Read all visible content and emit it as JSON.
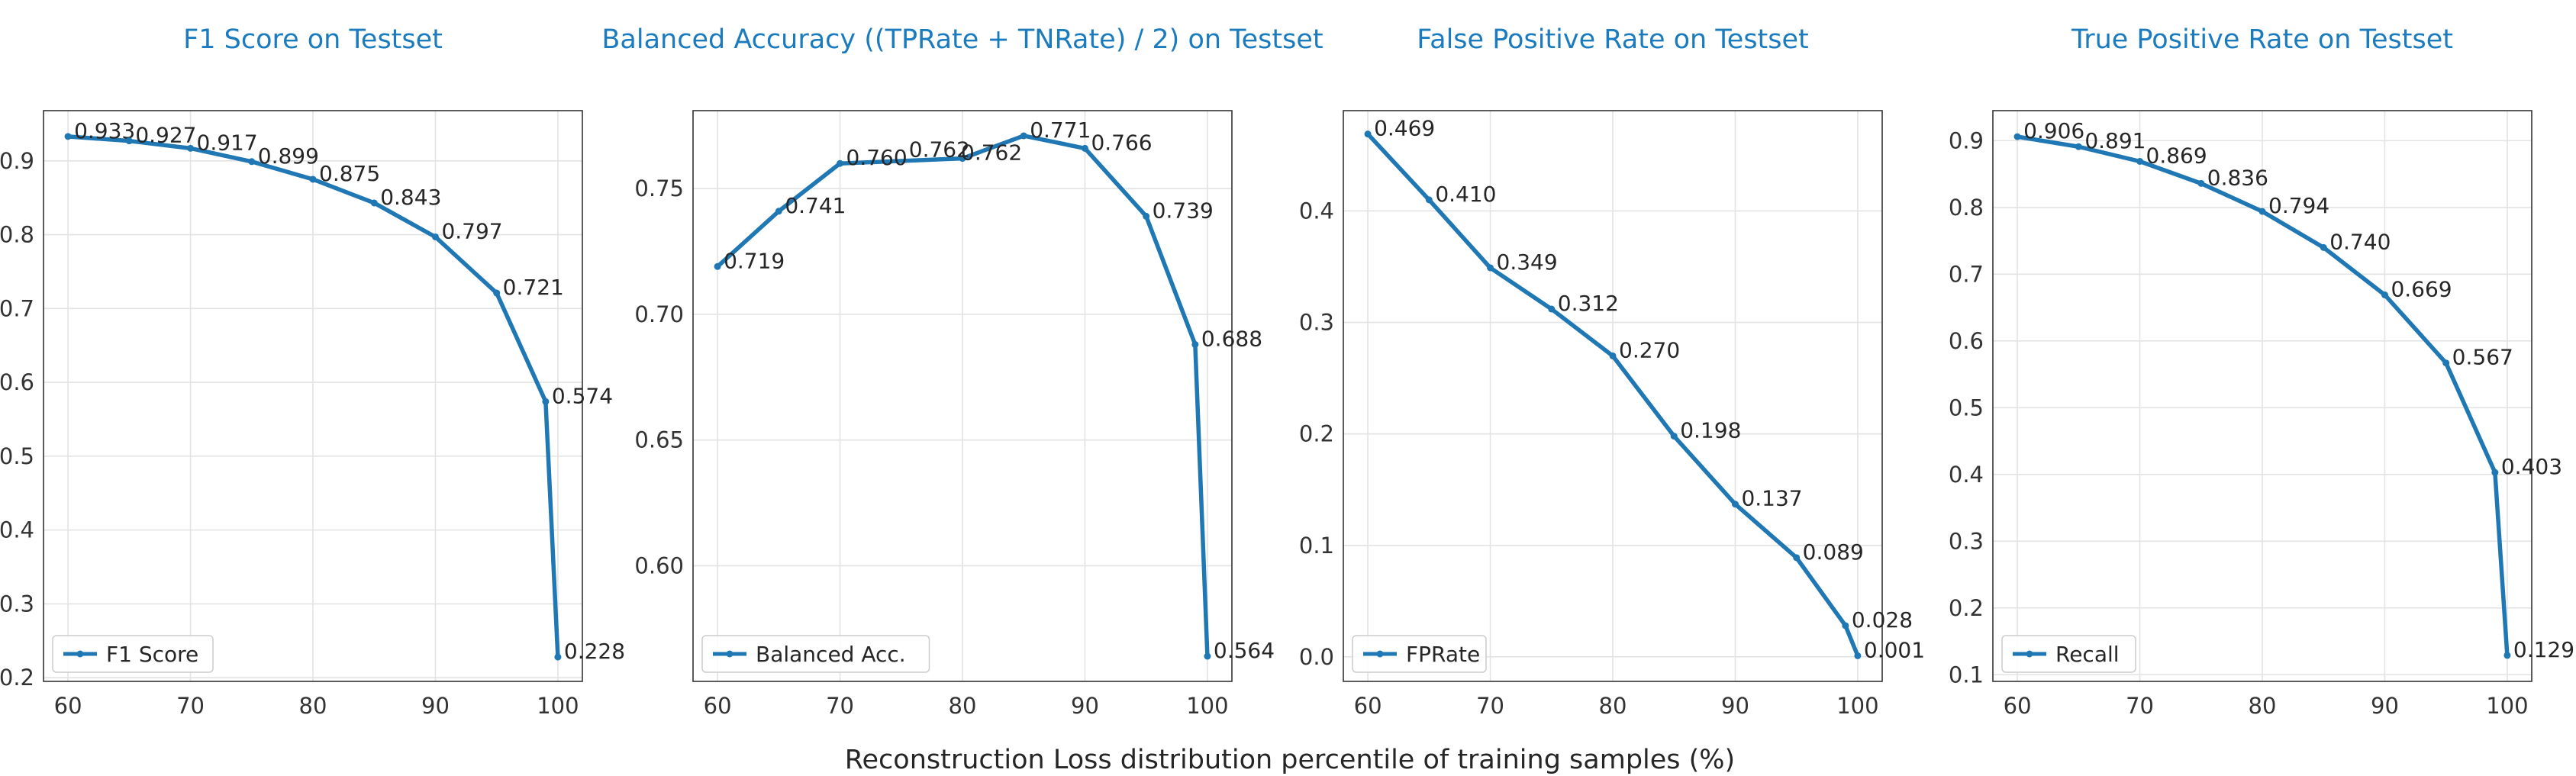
{
  "figure_xlabel": "Reconstruction Loss distribution percentile of training samples (%)",
  "series_color": "#1f77b4",
  "title_color": "#1a7bbf",
  "chart_data": [
    {
      "type": "line",
      "title": "F1 Score on Testset",
      "xlabel": "",
      "ylabel": "",
      "x": [
        60,
        65,
        70,
        75,
        80,
        85,
        90,
        95,
        99,
        100
      ],
      "series": [
        {
          "name": "F1 Score",
          "values": [
            0.933,
            0.927,
            0.917,
            0.899,
            0.875,
            0.843,
            0.797,
            0.721,
            0.574,
            0.228
          ]
        }
      ],
      "data_labels": [
        "0.933",
        "0.927",
        "0.917",
        "0.899",
        "0.875",
        "0.843",
        "0.797",
        "0.721",
        "0.574",
        "0.228"
      ],
      "xlim": [
        58,
        102
      ],
      "ylim": [
        0.195,
        0.968
      ],
      "xticks": [
        60,
        70,
        80,
        90,
        100
      ],
      "yticks": [
        0.2,
        0.3,
        0.4,
        0.5,
        0.6,
        0.7,
        0.8,
        0.9
      ],
      "ytick_labels": [
        "0.2",
        "0.3",
        "0.4",
        "0.5",
        "0.6",
        "0.7",
        "0.8",
        "0.9"
      ],
      "grid": true,
      "legend_position": "lower-left"
    },
    {
      "type": "line",
      "title": "Balanced Accuracy ((TPRate + TNRate) / 2) on Testset",
      "xlabel": "",
      "ylabel": "",
      "x": [
        60,
        65,
        70,
        80,
        85,
        90,
        95,
        99,
        100
      ],
      "series": [
        {
          "name": "Balanced Acc.",
          "values": [
            0.719,
            0.741,
            0.76,
            0.762,
            0.771,
            0.766,
            0.739,
            0.688,
            0.564
          ]
        }
      ],
      "data_labels": [
        "0.719",
        "0.741",
        "0.760",
        "0.762",
        "0.771",
        "0.766",
        "0.739",
        "0.688",
        "0.564"
      ],
      "extra_label": "0.762",
      "xlim": [
        58,
        102
      ],
      "ylim": [
        0.554,
        0.781
      ],
      "xticks": [
        60,
        70,
        80,
        90,
        100
      ],
      "yticks": [
        0.6,
        0.65,
        0.7,
        0.75
      ],
      "ytick_labels": [
        "0.60",
        "0.65",
        "0.70",
        "0.75"
      ],
      "grid": true,
      "legend_position": "lower-left"
    },
    {
      "type": "line",
      "title": "False Positive Rate on Testset",
      "xlabel": "",
      "ylabel": "",
      "x": [
        60,
        65,
        70,
        75,
        80,
        85,
        90,
        95,
        99,
        100
      ],
      "series": [
        {
          "name": "FPRate",
          "values": [
            0.469,
            0.41,
            0.349,
            0.312,
            0.27,
            0.198,
            0.137,
            0.089,
            0.028,
            0.001
          ]
        }
      ],
      "data_labels": [
        "0.469",
        "0.410",
        "0.349",
        "0.312",
        "0.270",
        "0.198",
        "0.137",
        "0.089",
        "0.028",
        "0.001"
      ],
      "xlim": [
        58,
        102
      ],
      "ylim": [
        -0.022,
        0.49
      ],
      "xticks": [
        60,
        70,
        80,
        90,
        100
      ],
      "yticks": [
        0.0,
        0.1,
        0.2,
        0.3,
        0.4
      ],
      "ytick_labels": [
        "0.0",
        "0.1",
        "0.2",
        "0.3",
        "0.4"
      ],
      "grid": true,
      "legend_position": "lower-left"
    },
    {
      "type": "line",
      "title": "True Positive Rate on Testset",
      "xlabel": "",
      "ylabel": "",
      "x": [
        60,
        65,
        70,
        75,
        80,
        85,
        90,
        95,
        99,
        100
      ],
      "series": [
        {
          "name": "Recall",
          "values": [
            0.906,
            0.891,
            0.869,
            0.836,
            0.794,
            0.74,
            0.669,
            0.567,
            0.403,
            0.129
          ]
        }
      ],
      "data_labels": [
        "0.906",
        "0.891",
        "0.869",
        "0.836",
        "0.794",
        "0.740",
        "0.669",
        "0.567",
        "0.403",
        "0.129]"
      ],
      "xlim": [
        58,
        102
      ],
      "ylim": [
        0.09,
        0.945
      ],
      "xticks": [
        60,
        70,
        80,
        90,
        100
      ],
      "yticks": [
        0.1,
        0.2,
        0.3,
        0.4,
        0.5,
        0.6,
        0.7,
        0.8,
        0.9
      ],
      "ytick_labels": [
        "0.1",
        "0.2",
        "0.3",
        "0.4",
        "0.5",
        "0.6",
        "0.7",
        "0.8",
        "0.9"
      ],
      "grid": true,
      "legend_position": "lower-left"
    }
  ]
}
